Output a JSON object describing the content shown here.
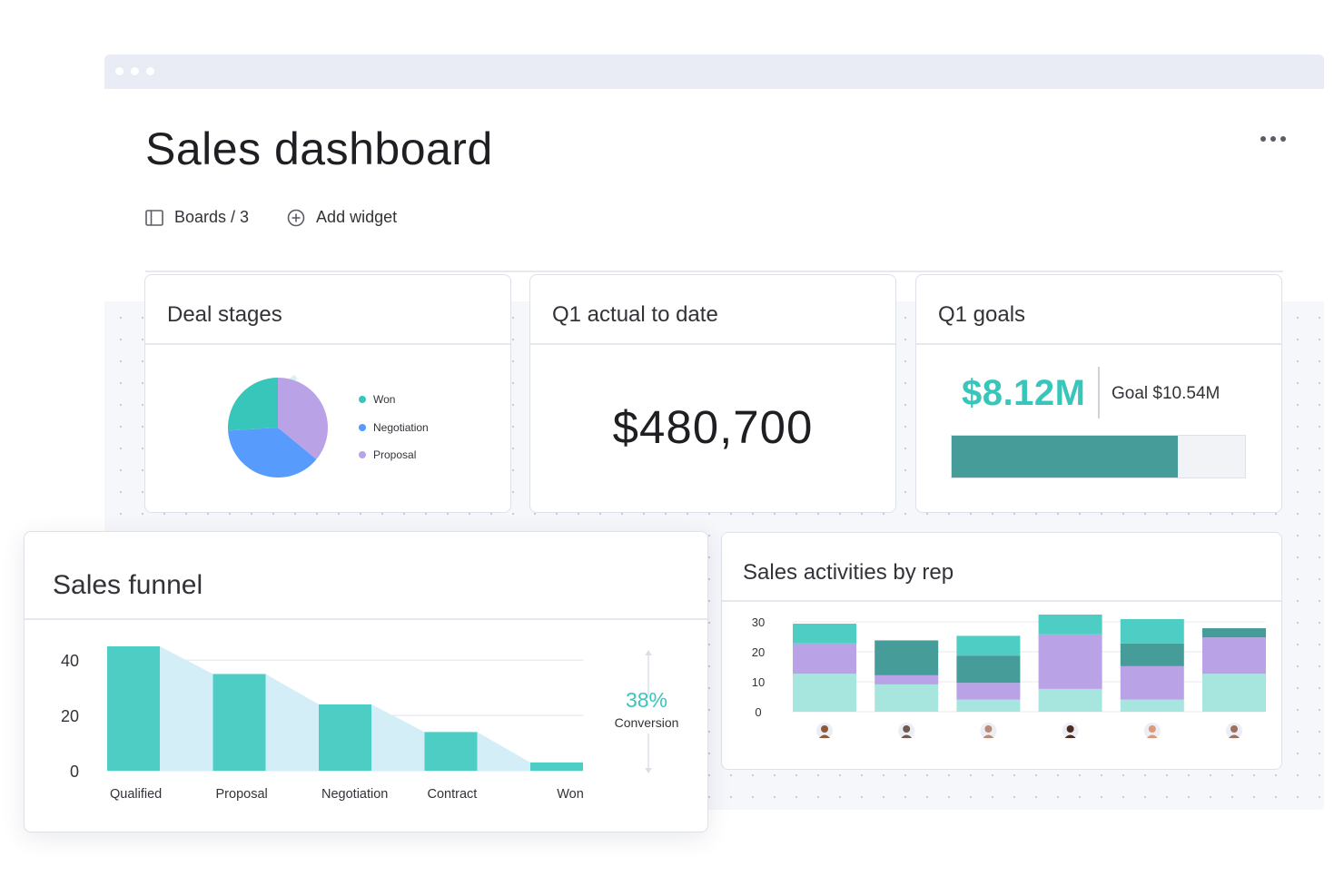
{
  "page": {
    "title": "Sales dashboard",
    "boards_label": "Boards / 3",
    "add_widget_label": "Add widget"
  },
  "colors": {
    "accent": "#38c6bb",
    "teal_dark": "#469c99",
    "lavender": "#b9a3e6",
    "blue": "#579bfc",
    "light_teal": "#a6e6df",
    "light_blue_fill": "#d3eef7"
  },
  "widgets": {
    "deal_stages": {
      "title": "Deal stages",
      "legend": [
        {
          "label": "Won",
          "color": "#38c6bb"
        },
        {
          "label": "Negotiation",
          "color": "#579bfc"
        },
        {
          "label": "Proposal",
          "color": "#b9a3e6"
        }
      ]
    },
    "q1_actual": {
      "title": "Q1 actual to date",
      "value": "$480,700"
    },
    "q1_goals": {
      "title": "Q1 goals",
      "value": "$8.12M",
      "goal_label": "Goal $10.54M",
      "progress_percent": 77
    },
    "sales_funnel": {
      "title": "Sales funnel",
      "conversion_value": "38%",
      "conversion_label": "Conversion"
    },
    "sales_activities": {
      "title": "Sales activities by rep"
    }
  },
  "chart_data": [
    {
      "id": "deal_stages",
      "type": "pie",
      "labels": [
        "Won",
        "Negotiation",
        "Proposal"
      ],
      "values": [
        26,
        38,
        36
      ],
      "colors": [
        "#38c6bb",
        "#579bfc",
        "#b9a3e6"
      ]
    },
    {
      "id": "sales_funnel",
      "type": "bar",
      "categories": [
        "Qualified",
        "Proposal",
        "Negotiation",
        "Contract",
        "Won"
      ],
      "values": [
        45,
        35,
        24,
        14,
        3
      ],
      "yticks": [
        0,
        20,
        40
      ],
      "ylim": [
        0,
        45
      ]
    },
    {
      "id": "sales_activities",
      "type": "bar",
      "stacked": true,
      "categories": [
        "Rep 1",
        "Rep 2",
        "Rep 3",
        "Rep 4",
        "Rep 5",
        "Rep 6"
      ],
      "yticks": [
        0,
        10,
        20,
        30
      ],
      "ylim": [
        0,
        32
      ],
      "series": [
        {
          "values": [
            12.5,
            9,
            4,
            7.5,
            4,
            12.5
          ],
          "color": "#a6e6df"
        },
        {
          "values": [
            10,
            3,
            5.5,
            18,
            11,
            12
          ],
          "color": "#b9a3e6"
        },
        {
          "values": [
            0,
            11.5,
            9,
            0,
            7.5,
            3
          ],
          "color": "#469c99"
        },
        {
          "values": [
            6.5,
            0,
            6.5,
            6.5,
            8,
            0
          ],
          "color": "#4ecdc4"
        }
      ],
      "avatars": [
        "#8a5a3c",
        "#6e5a52",
        "#b98a78",
        "#4a2c22",
        "#d99a7a",
        "#9a7060"
      ]
    }
  ]
}
